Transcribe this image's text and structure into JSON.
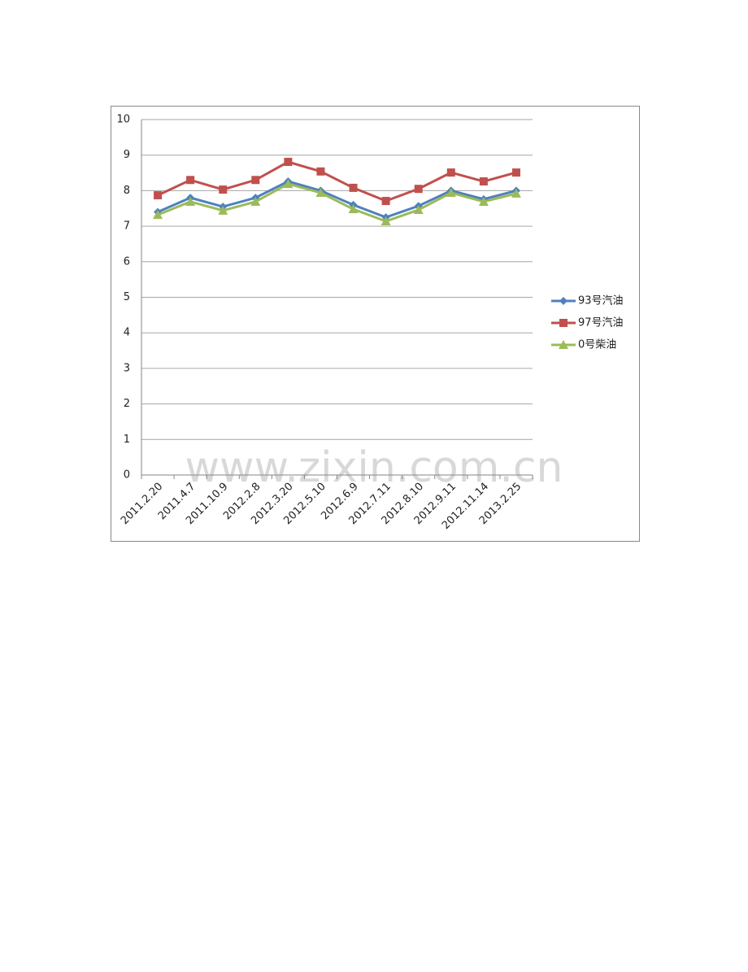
{
  "chart_data": {
    "type": "line",
    "categories": [
      "2011.2.20",
      "2011.4.7",
      "2011.10.9",
      "2012.2.8",
      "2012.3.20",
      "2012.5.10",
      "2012.6.9",
      "2012.7.11",
      "2012.8.10",
      "2012.9.11",
      "2012.11.14",
      "2013.2.25"
    ],
    "series": [
      {
        "name": "93号汽油",
        "color": "#4f81bd",
        "marker": "diamond",
        "values": [
          7.4,
          7.8,
          7.55,
          7.8,
          8.26,
          8.0,
          7.6,
          7.25,
          7.57,
          8.0,
          7.76,
          8.0
        ]
      },
      {
        "name": "97号汽油",
        "color": "#c0504d",
        "marker": "square",
        "values": [
          7.87,
          8.3,
          8.03,
          8.3,
          8.81,
          8.54,
          8.08,
          7.71,
          8.05,
          8.51,
          8.26,
          8.51
        ]
      },
      {
        "name": "0号柴油",
        "color": "#9bbb59",
        "marker": "triangle",
        "values": [
          7.32,
          7.69,
          7.44,
          7.69,
          8.19,
          7.94,
          7.48,
          7.14,
          7.46,
          7.94,
          7.69,
          7.92
        ]
      }
    ],
    "ylim": [
      0,
      10
    ],
    "yticks": [
      0,
      1,
      2,
      3,
      4,
      5,
      6,
      7,
      8,
      9,
      10
    ],
    "grid": true,
    "legend": "right",
    "watermark": "www.zixin.com.cn"
  }
}
